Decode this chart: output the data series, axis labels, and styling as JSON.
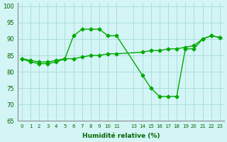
{
  "xlabel": "Humidité relative (%)",
  "ylabel": "",
  "background_color": "#d4f5f5",
  "grid_color": "#aadddd",
  "line_color": "#00aa00",
  "xlim": [
    -0.5,
    23.5
  ],
  "ylim": [
    65,
    101
  ],
  "yticks": [
    65,
    70,
    75,
    80,
    85,
    90,
    95,
    100
  ],
  "xtick_positions": [
    0,
    1,
    2,
    3,
    4,
    5,
    6,
    7,
    8,
    9,
    10,
    11,
    13,
    14,
    15,
    16,
    17,
    18,
    19,
    20,
    21,
    22,
    23
  ],
  "xtick_labels": [
    "0",
    "1",
    "2",
    "3",
    "4",
    "5",
    "6",
    "7",
    "8",
    "9",
    "10",
    "11",
    "13",
    "14",
    "15",
    "16",
    "17",
    "18",
    "19",
    "20",
    "21",
    "22",
    "23"
  ],
  "line1_x": [
    0,
    1,
    2,
    3,
    4,
    5,
    6,
    7,
    8,
    9,
    10,
    11,
    14,
    15,
    16,
    17,
    18,
    19,
    20,
    21,
    22,
    23
  ],
  "line1_y": [
    84,
    83,
    82.5,
    82.5,
    83,
    84,
    91,
    93,
    93,
    93,
    91,
    91,
    79,
    75,
    72.5,
    72.5,
    72.5,
    87,
    87,
    90,
    91,
    90.5
  ],
  "line2_x": [
    0,
    1,
    2,
    3,
    4,
    5,
    6,
    7,
    8,
    9,
    10,
    11,
    14,
    15,
    16,
    17,
    18,
    19,
    20,
    21,
    22,
    23
  ],
  "line2_y": [
    84,
    83.5,
    83,
    83,
    83.5,
    84,
    84,
    84.5,
    85,
    85,
    85.5,
    85.5,
    86,
    86.5,
    86.5,
    87,
    87,
    87.5,
    88,
    90,
    91,
    90.5
  ]
}
